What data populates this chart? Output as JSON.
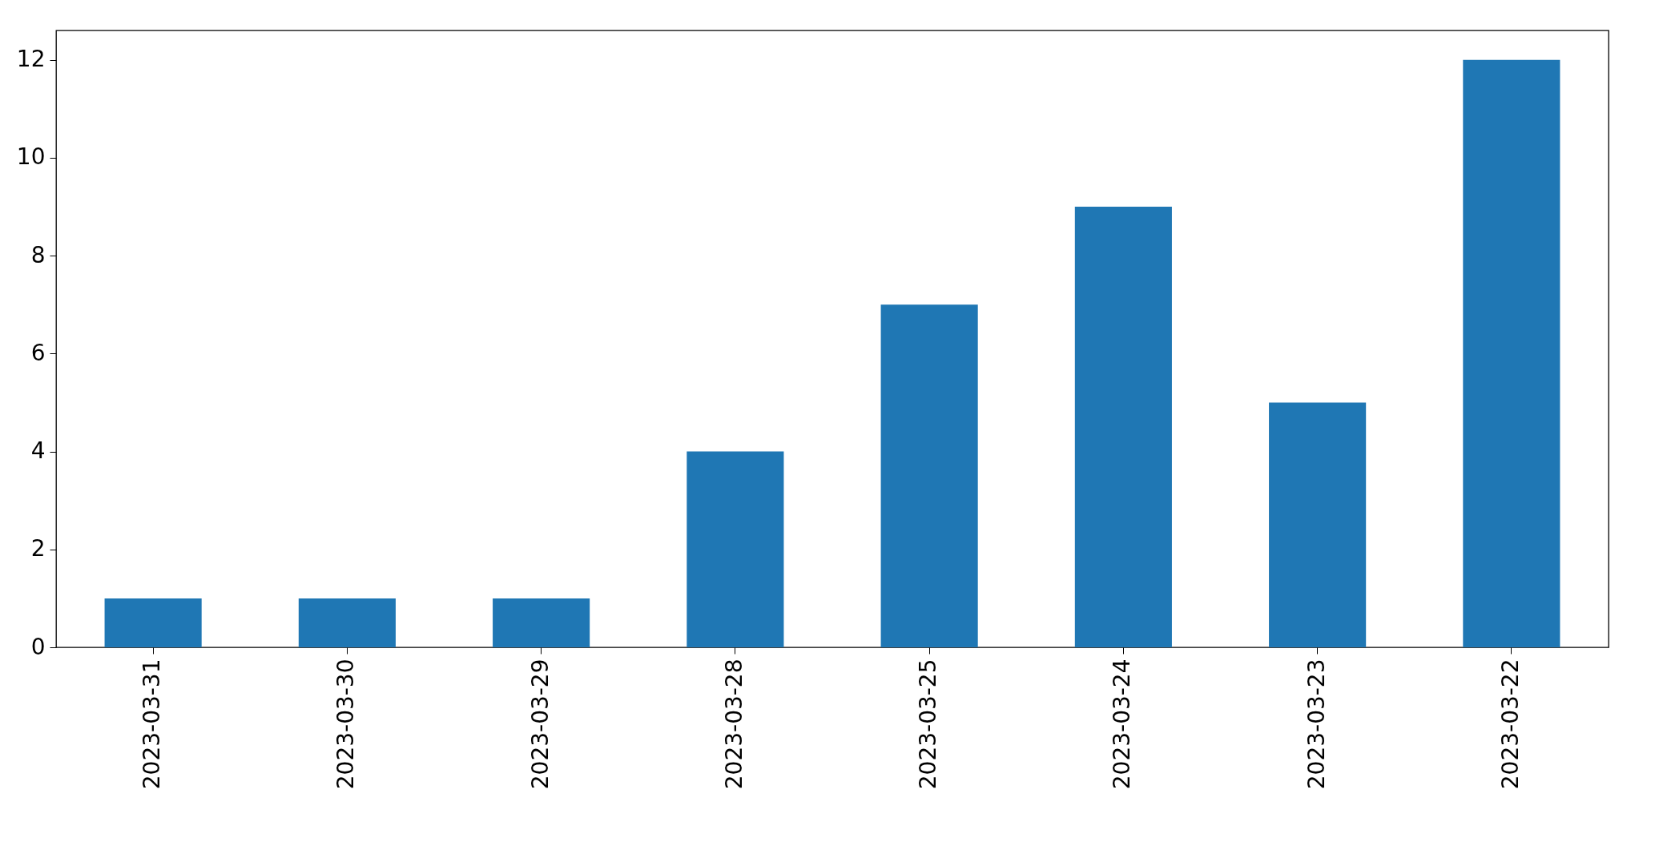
{
  "chart_data": {
    "type": "bar",
    "categories": [
      "2023-03-31",
      "2023-03-30",
      "2023-03-29",
      "2023-03-28",
      "2023-03-25",
      "2023-03-24",
      "2023-03-23",
      "2023-03-22"
    ],
    "values": [
      1,
      1,
      1,
      4,
      7,
      9,
      5,
      12
    ],
    "color": "#1f77b4",
    "ylim": [
      0,
      12.6
    ],
    "yticks": [
      0,
      2,
      4,
      6,
      8,
      10,
      12
    ],
    "grid": false
  }
}
